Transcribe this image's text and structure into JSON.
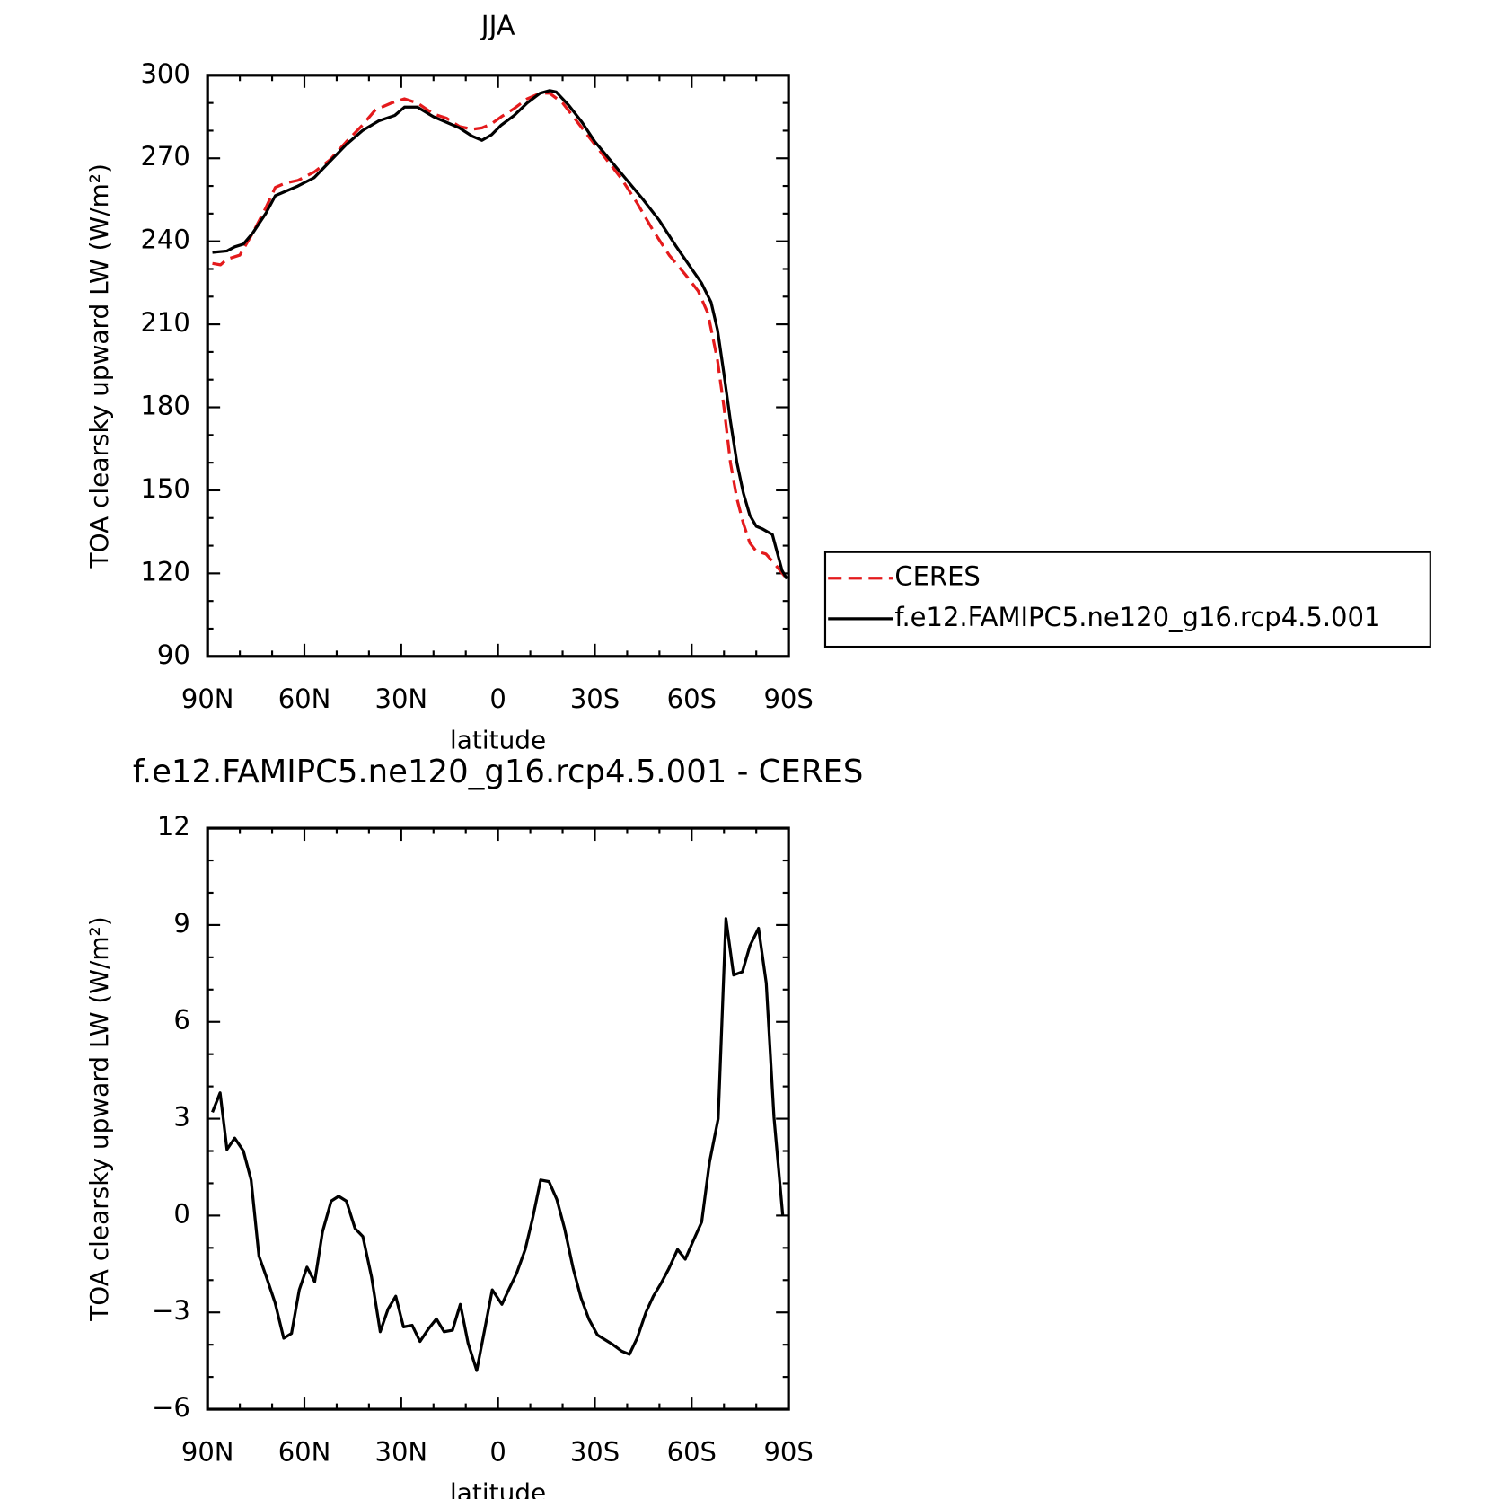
{
  "chart_data": [
    {
      "type": "line",
      "title": "JJA",
      "xlabel": "latitude",
      "ylabel": "TOA clearsky upward LW (W/m²)",
      "xlim": [
        90,
        -90
      ],
      "xticks": [
        {
          "value": 90,
          "label": "90N"
        },
        {
          "value": 60,
          "label": "60N"
        },
        {
          "value": 30,
          "label": "30N"
        },
        0,
        {
          "value": -30,
          "label": "30S"
        },
        {
          "value": -60,
          "label": "60S"
        },
        {
          "value": -90,
          "label": "90S"
        }
      ],
      "ylim": [
        90,
        300
      ],
      "yticks": [
        90,
        120,
        150,
        180,
        210,
        240,
        270,
        300
      ],
      "legend": "right",
      "series": [
        {
          "name": "CERES",
          "color": "#e41a1c",
          "linestyle": "dashed",
          "x": [
            88.5,
            86,
            84,
            80,
            76,
            72,
            69,
            66,
            62,
            57,
            52,
            47,
            42,
            38,
            33,
            29,
            25,
            20,
            16,
            12,
            8,
            5,
            2,
            -1,
            -5,
            -9,
            -13,
            -16,
            -20,
            -24,
            -28,
            -32,
            -38,
            -43,
            -48,
            -53,
            -58,
            -62,
            -65,
            -68,
            -70,
            -72,
            -74,
            -76,
            -78,
            -80,
            -83,
            -86,
            -89.5
          ],
          "values": [
            232,
            231.5,
            233.5,
            235,
            243,
            252,
            259.5,
            261,
            262,
            265,
            269.5,
            276,
            282,
            287.5,
            290,
            291.5,
            290,
            286,
            284.5,
            281.5,
            280.5,
            281,
            282.5,
            285,
            288,
            291.5,
            293.5,
            293.5,
            290,
            284,
            278,
            272,
            263,
            254,
            244,
            235,
            228,
            222,
            214,
            197,
            180,
            160,
            147,
            138,
            131,
            128,
            127,
            123,
            118
          ]
        },
        {
          "name": "f.e12.FAMIPC5.ne120_g16.rcp4.5.001",
          "color": "#000000",
          "linestyle": "solid",
          "x": [
            88.5,
            84,
            81.6,
            78.9,
            76,
            72,
            69,
            66,
            62,
            57,
            52,
            47,
            42,
            37,
            32,
            29,
            25,
            20,
            16,
            12,
            8,
            5,
            2,
            -1,
            -5,
            -9,
            -13,
            -16,
            -18,
            -22,
            -26,
            -30,
            -35,
            -40,
            -45,
            -50,
            -55,
            -60,
            -63,
            -66,
            -68,
            -70,
            -72,
            -74,
            -76,
            -78,
            -80,
            -82,
            -85,
            -88,
            -89.5
          ],
          "values": [
            236,
            236.5,
            238,
            239,
            243,
            250,
            256.5,
            258,
            260,
            263,
            269,
            275,
            280,
            283.5,
            285.5,
            288.5,
            288.5,
            285,
            283,
            281,
            278,
            276.5,
            278.5,
            282,
            285.5,
            290,
            293.5,
            294.5,
            294,
            289,
            283,
            276,
            269,
            262,
            255,
            247.5,
            238.5,
            230,
            225,
            218,
            208,
            192,
            175,
            160,
            149,
            141,
            137,
            136,
            134,
            121,
            118
          ]
        }
      ]
    },
    {
      "type": "line",
      "title": "f.e12.FAMIPC5.ne120_g16.rcp4.5.001 - CERES",
      "xlabel": "latitude",
      "ylabel": "TOA clearsky upward LW (W/m²)",
      "xlim": [
        90,
        -90
      ],
      "xticks": [
        {
          "value": 90,
          "label": "90N"
        },
        {
          "value": 60,
          "label": "60N"
        },
        {
          "value": 30,
          "label": "30N"
        },
        0,
        {
          "value": -30,
          "label": "30S"
        },
        {
          "value": -60,
          "label": "60S"
        },
        {
          "value": -90,
          "label": "90S"
        }
      ],
      "ylim": [
        -6,
        12
      ],
      "yticks": [
        {
          "value": -6,
          "label": "−6"
        },
        {
          "value": -3,
          "label": "−3"
        },
        0,
        3,
        6,
        9,
        12
      ],
      "series": [
        {
          "color": "#000000",
          "linestyle": "solid",
          "x": [
            88.5,
            86.1,
            84.0,
            81.6,
            78.9,
            76.5,
            74.1,
            71.8,
            69.1,
            66.4,
            64.0,
            61.6,
            59.2,
            56.8,
            54.4,
            51.7,
            49.4,
            47.0,
            44.3,
            41.9,
            39.2,
            36.5,
            34.1,
            31.7,
            29.3,
            26.6,
            24.2,
            21.5,
            19.1,
            16.7,
            14.1,
            11.7,
            9.3,
            6.6,
            4.2,
            1.8,
            -1.2,
            -3.3,
            -5.7,
            -8.4,
            -10.8,
            -13.2,
            -15.8,
            -18.2,
            -20.6,
            -23.3,
            -25.7,
            -28.1,
            -30.8,
            -33.2,
            -35.6,
            -38.3,
            -40.7,
            -43.1,
            -45.8,
            -48.1,
            -50.5,
            -52.9,
            -55.6,
            -58.0,
            -60.4,
            -63.1,
            -65.5,
            -68.2,
            -70.6,
            -73.0,
            -75.7,
            -78.0,
            -80.7,
            -83.1,
            -85.5,
            -88.2
          ],
          "values": [
            3.2,
            3.8,
            2.05,
            2.4,
            2.0,
            1.1,
            -1.25,
            -1.9,
            -2.7,
            -3.8,
            -3.65,
            -2.3,
            -1.6,
            -2.05,
            -0.5,
            0.45,
            0.6,
            0.45,
            -0.4,
            -0.65,
            -1.9,
            -3.6,
            -2.9,
            -2.5,
            -3.45,
            -3.4,
            -3.9,
            -3.5,
            -3.2,
            -3.6,
            -3.55,
            -2.75,
            -3.95,
            -4.8,
            -3.55,
            -2.3,
            -2.75,
            -2.3,
            -1.8,
            -1.05,
            -0.05,
            1.1,
            1.05,
            0.5,
            -0.4,
            -1.65,
            -2.55,
            -3.2,
            -3.7,
            -3.85,
            -4.0,
            -4.2,
            -4.3,
            -3.8,
            -3.0,
            -2.5,
            -2.1,
            -1.65,
            -1.05,
            -1.35,
            -0.8,
            -0.2,
            1.65,
            3.0,
            9.2,
            7.45,
            7.55,
            8.35,
            8.9,
            7.2,
            3.05,
            0.0
          ]
        }
      ]
    }
  ]
}
